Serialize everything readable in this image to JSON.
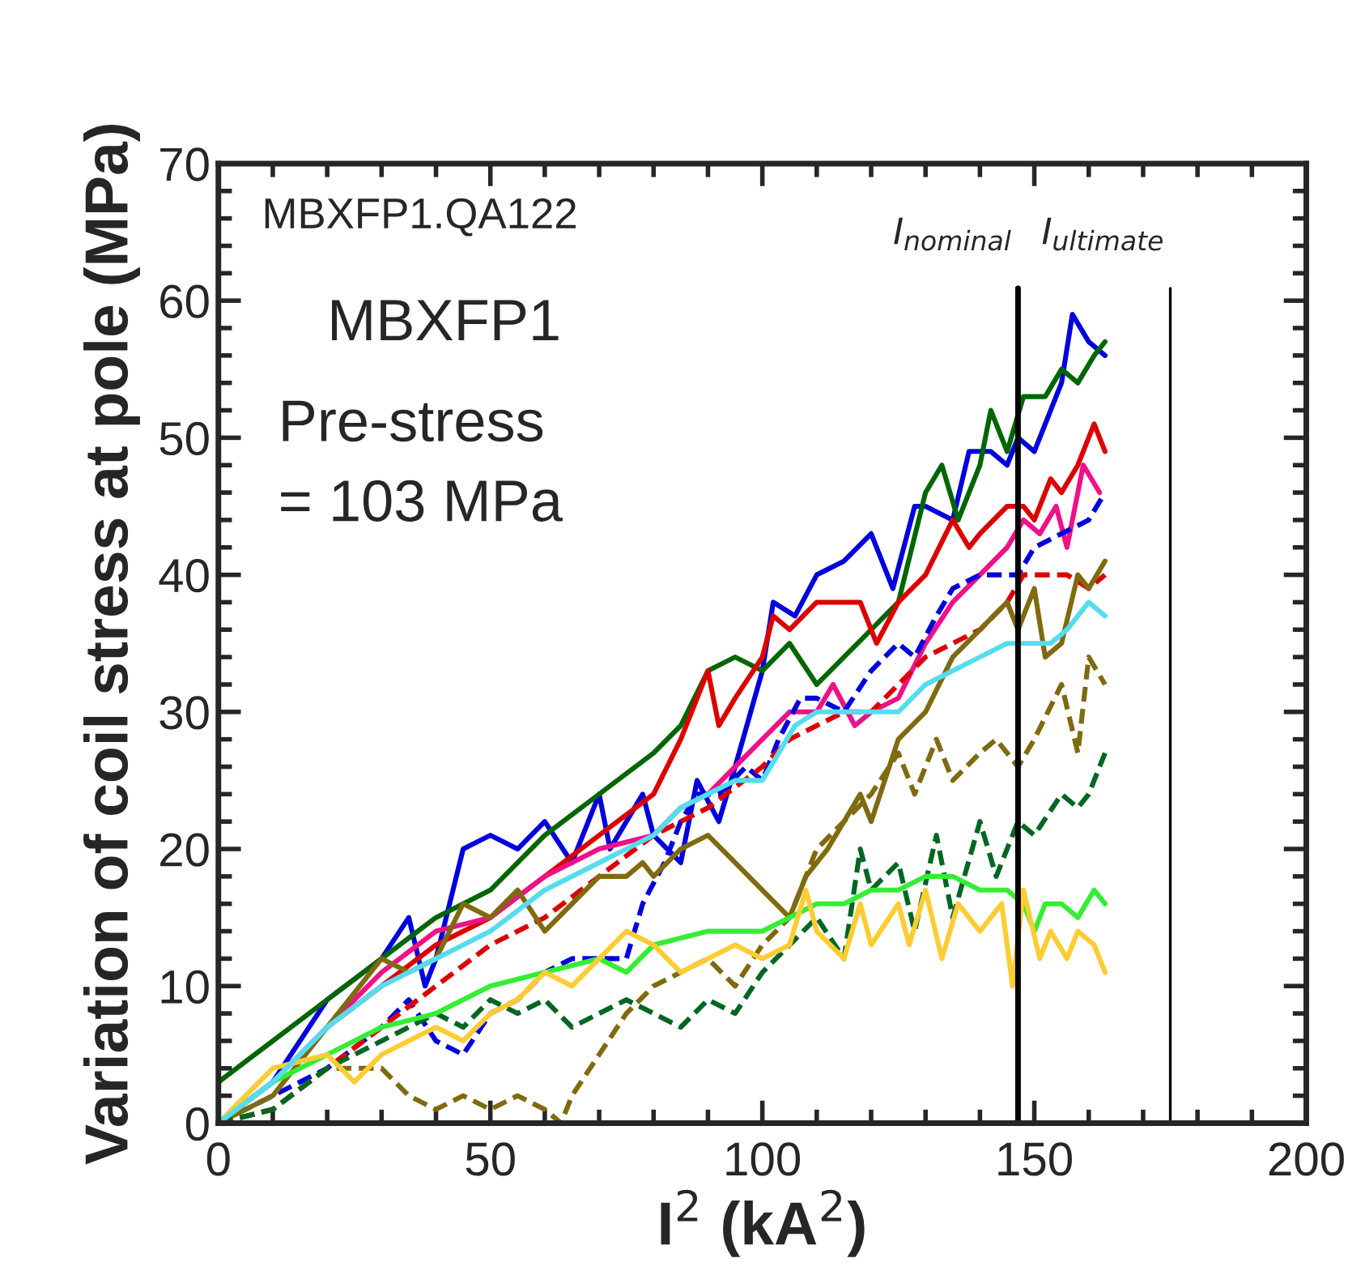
{
  "chart_data": {
    "type": "line",
    "xlabel": "I$^{2}$ (kA$^{2}$)",
    "ylabel": "Variation of coil stress at pole (MPa)",
    "annotations": [
      "MBXFP1.QA122",
      "MBXFP1",
      "Pre-stress\n= 103 MPa"
    ],
    "xlim": [
      0,
      200
    ],
    "ylim": [
      0,
      70
    ],
    "xticks": [
      0,
      {
        "value": 10,
        "label": null
      },
      {
        "value": 20,
        "label": null
      },
      {
        "value": 30,
        "label": null
      },
      {
        "value": 40,
        "label": null
      },
      50,
      {
        "value": 60,
        "label": null
      },
      {
        "value": 70,
        "label": null
      },
      {
        "value": 80,
        "label": null
      },
      {
        "value": 90,
        "label": null
      },
      100,
      {
        "value": 110,
        "label": null
      },
      {
        "value": 120,
        "label": null
      },
      {
        "value": 130,
        "label": null
      },
      {
        "value": 140,
        "label": null
      },
      150,
      {
        "value": 160,
        "label": null
      },
      {
        "value": 170,
        "label": null
      },
      {
        "value": 180,
        "label": null
      },
      {
        "value": 190,
        "label": null
      },
      200
    ],
    "yticks": [
      0,
      {
        "value": 2,
        "label": null
      },
      {
        "value": 4,
        "label": null
      },
      {
        "value": 6,
        "label": null
      },
      {
        "value": 8,
        "label": null
      },
      10,
      {
        "value": 12,
        "label": null
      },
      {
        "value": 14,
        "label": null
      },
      {
        "value": 16,
        "label": null
      },
      {
        "value": 18,
        "label": null
      },
      20,
      {
        "value": 22,
        "label": null
      },
      {
        "value": 24,
        "label": null
      },
      {
        "value": 26,
        "label": null
      },
      {
        "value": 28,
        "label": null
      },
      30,
      {
        "value": 32,
        "label": null
      },
      {
        "value": 34,
        "label": null
      },
      {
        "value": 36,
        "label": null
      },
      {
        "value": 38,
        "label": null
      },
      40,
      {
        "value": 42,
        "label": null
      },
      {
        "value": 44,
        "label": null
      },
      {
        "value": 46,
        "label": null
      },
      {
        "value": 48,
        "label": null
      },
      50,
      {
        "value": 52,
        "label": null
      },
      {
        "value": 54,
        "label": null
      },
      {
        "value": 56,
        "label": null
      },
      {
        "value": 58,
        "label": null
      },
      60,
      {
        "value": 62,
        "label": null
      },
      {
        "value": 64,
        "label": null
      },
      {
        "value": 66,
        "label": null
      },
      {
        "value": 68,
        "label": null
      },
      70
    ],
    "grid": false,
    "legend": false,
    "marker": "none",
    "ref_lines": [
      {
        "axis": "x",
        "value": 147,
        "label": "I$_{nominal}$",
        "color": "#000000"
      },
      {
        "axis": "x",
        "value": 175,
        "label": "I$_{ultimate}$",
        "color": "#000000"
      }
    ],
    "series": [
      {
        "color": "#0000dd",
        "line_style": "solid",
        "x": [
          0,
          10,
          20,
          30,
          35,
          38,
          40,
          45,
          50,
          55,
          60,
          65,
          70,
          72,
          78,
          80,
          85,
          88,
          92,
          95,
          100,
          102,
          106,
          110,
          115,
          120,
          124,
          128,
          130,
          135,
          138,
          142,
          145,
          147,
          150,
          155,
          157,
          160,
          163
        ],
        "values": [
          0,
          3,
          9,
          12,
          15,
          10,
          12,
          20,
          21,
          20,
          22,
          19,
          24,
          20,
          24,
          21,
          19,
          25,
          22,
          26,
          33,
          38,
          37,
          40,
          41,
          43,
          39,
          45,
          45,
          44,
          49,
          49,
          48,
          50,
          49,
          54,
          59,
          57,
          56
        ]
      },
      {
        "color": "#006600",
        "line_style": "solid",
        "x": [
          0,
          10,
          20,
          30,
          40,
          50,
          60,
          70,
          80,
          85,
          90,
          95,
          100,
          105,
          110,
          115,
          120,
          125,
          130,
          133,
          136,
          140,
          142,
          145,
          148,
          152,
          155,
          158,
          161,
          163
        ],
        "values": [
          3,
          6,
          9,
          12,
          15,
          17,
          21,
          24,
          27,
          29,
          33,
          34,
          33,
          35,
          32,
          34,
          36,
          38,
          46,
          48,
          44,
          48,
          52,
          49,
          53,
          53,
          55,
          54,
          56,
          57
        ]
      },
      {
        "color": "#dd0000",
        "line_style": "solid",
        "x": [
          20,
          30,
          40,
          50,
          60,
          70,
          80,
          85,
          90,
          92,
          95,
          100,
          102,
          105,
          110,
          115,
          118,
          121,
          125,
          130,
          135,
          138,
          140,
          145,
          148,
          150,
          153,
          155,
          158,
          161,
          163
        ],
        "values": [
          7,
          10,
          13,
          15,
          18,
          21,
          24,
          28,
          33,
          29,
          31,
          34,
          37,
          36,
          38,
          38,
          38,
          35,
          38,
          40,
          44,
          42,
          43,
          45,
          45,
          44,
          47,
          46,
          48,
          51,
          49
        ]
      },
      {
        "color": "#ee1188",
        "line_style": "solid",
        "x": [
          0,
          10,
          20,
          30,
          40,
          50,
          60,
          70,
          80,
          85,
          90,
          95,
          100,
          105,
          110,
          113,
          117,
          120,
          125,
          130,
          135,
          140,
          145,
          148,
          151,
          154,
          156,
          159,
          162
        ],
        "values": [
          0,
          3,
          7,
          11,
          14,
          15,
          18,
          20,
          21,
          23,
          24,
          26,
          28,
          30,
          30,
          32,
          29,
          30,
          31,
          35,
          38,
          40,
          42,
          44,
          43,
          45,
          42,
          48,
          46
        ]
      },
      {
        "color": "#0000dd",
        "line_style": "dashed",
        "x": [
          0,
          10,
          20,
          30,
          35,
          40,
          45,
          50,
          55,
          60,
          65,
          70,
          75,
          78,
          82,
          85,
          88,
          92,
          97,
          100,
          103,
          107,
          110,
          115,
          120,
          125,
          128,
          132,
          135,
          140,
          145,
          147,
          150,
          155,
          160,
          163
        ],
        "values": [
          0,
          2,
          4,
          7,
          9,
          6,
          5,
          8,
          9,
          11,
          12,
          12,
          12,
          16,
          19,
          22,
          24,
          24,
          26,
          25,
          28,
          31,
          31,
          30,
          33,
          35,
          34,
          37,
          39,
          40,
          40,
          40,
          42,
          43,
          44,
          46
        ]
      },
      {
        "color": "#dd0000",
        "line_style": "dashed",
        "x": [
          0,
          10,
          20,
          30,
          40,
          50,
          60,
          70,
          80,
          90,
          100,
          105,
          110,
          115,
          120,
          125,
          130,
          135,
          140,
          145,
          148,
          152,
          156,
          160,
          163
        ],
        "values": [
          0,
          1,
          4,
          7,
          10,
          13,
          15,
          18,
          21,
          23,
          26,
          28,
          29,
          30,
          30,
          32,
          34,
          35,
          36,
          38,
          40,
          40,
          40,
          39,
          40
        ]
      },
      {
        "color": "#806a10",
        "line_style": "solid",
        "x": [
          0,
          10,
          20,
          30,
          35,
          40,
          45,
          50,
          55,
          60,
          65,
          70,
          75,
          78,
          80,
          85,
          90,
          95,
          100,
          105,
          108,
          112,
          115,
          118,
          120,
          125,
          130,
          135,
          140,
          145,
          147,
          150,
          152,
          155,
          158,
          160,
          163
        ],
        "values": [
          0,
          2,
          7,
          12,
          11,
          12,
          16,
          15,
          17,
          14,
          16,
          18,
          18,
          19,
          18,
          20,
          21,
          19,
          17,
          15,
          18,
          20,
          22,
          24,
          22,
          28,
          30,
          34,
          36,
          38,
          36,
          39,
          34,
          35,
          40,
          39,
          41
        ]
      },
      {
        "color": "#806a10",
        "line_style": "dashed",
        "x": [
          0,
          10,
          20,
          30,
          35,
          40,
          45,
          50,
          55,
          60,
          63,
          65,
          70,
          75,
          80,
          85,
          90,
          95,
          100,
          105,
          110,
          115,
          120,
          125,
          128,
          132,
          135,
          140,
          143,
          147,
          150,
          155,
          158,
          160,
          163
        ],
        "values": [
          0,
          1,
          4,
          4,
          2,
          1,
          2,
          1,
          2,
          1,
          0,
          2,
          5,
          8,
          10,
          11,
          12,
          10,
          13,
          15,
          20,
          22,
          24,
          27,
          24,
          28,
          25,
          27,
          28,
          26,
          28,
          32,
          27,
          34,
          32
        ]
      },
      {
        "color": "#006622",
        "line_style": "dashed",
        "x": [
          0,
          10,
          20,
          30,
          40,
          45,
          50,
          55,
          60,
          65,
          70,
          75,
          80,
          85,
          90,
          95,
          100,
          105,
          110,
          115,
          118,
          120,
          125,
          128,
          132,
          135,
          140,
          143,
          147,
          150,
          155,
          158,
          160,
          163
        ],
        "values": [
          0,
          1,
          4,
          6,
          8,
          7,
          9,
          8,
          9,
          7,
          8,
          9,
          8,
          7,
          9,
          8,
          11,
          13,
          15,
          12,
          20,
          17,
          19,
          14,
          21,
          15,
          22,
          18,
          22,
          21,
          24,
          23,
          24,
          27
        ]
      },
      {
        "color": "#33ee33",
        "line_style": "solid",
        "x": [
          0,
          10,
          20,
          30,
          40,
          50,
          60,
          70,
          75,
          80,
          90,
          100,
          105,
          110,
          115,
          120,
          125,
          130,
          135,
          140,
          145,
          148,
          150,
          152,
          155,
          158,
          161,
          163
        ],
        "values": [
          0,
          3,
          5,
          7,
          8,
          10,
          11,
          12,
          11,
          13,
          14,
          14,
          15,
          16,
          16,
          17,
          17,
          18,
          18,
          17,
          17,
          16,
          14,
          16,
          16,
          15,
          17,
          16
        ]
      },
      {
        "color": "#ffcc33",
        "line_style": "solid",
        "x": [
          0,
          5,
          10,
          20,
          25,
          30,
          35,
          40,
          45,
          50,
          55,
          60,
          65,
          70,
          75,
          80,
          85,
          90,
          95,
          100,
          105,
          108,
          110,
          115,
          118,
          120,
          125,
          127,
          130,
          133,
          136,
          140,
          144,
          146,
          148,
          151,
          153,
          156,
          158,
          161,
          163
        ],
        "values": [
          0,
          2,
          4,
          5,
          3,
          5,
          6,
          7,
          6,
          8,
          9,
          11,
          10,
          12,
          14,
          13,
          11,
          12,
          13,
          12,
          13,
          17,
          14,
          12,
          16,
          13,
          16,
          13,
          17,
          12,
          16,
          14,
          16,
          10,
          17,
          12,
          14,
          12,
          14,
          13,
          11
        ]
      },
      {
        "color": "#55ddee",
        "line_style": "solid",
        "x": [
          0,
          10,
          20,
          30,
          40,
          50,
          60,
          70,
          80,
          85,
          90,
          95,
          100,
          103,
          106,
          110,
          115,
          120,
          125,
          130,
          135,
          140,
          145,
          150,
          153,
          156,
          160,
          163
        ],
        "values": [
          0,
          3,
          7,
          10,
          12,
          14,
          17,
          19,
          21,
          23,
          24,
          25,
          25,
          27,
          29,
          30,
          30,
          30,
          30,
          32,
          33,
          34,
          35,
          35,
          35,
          36,
          38,
          37
        ]
      }
    ]
  }
}
